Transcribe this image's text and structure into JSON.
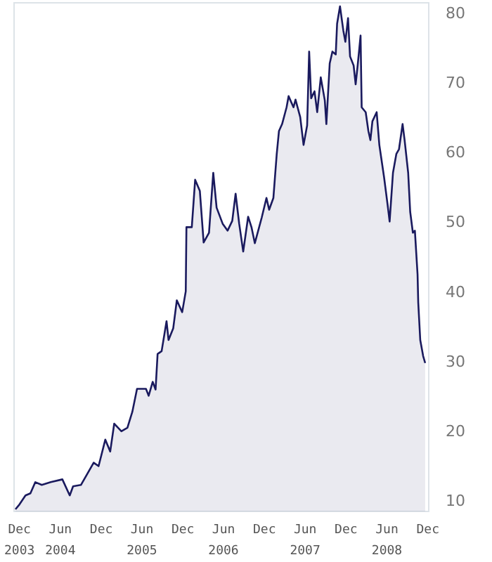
{
  "chart_data": {
    "type": "area",
    "x": [
      "2003-11-13",
      "2003-12-01",
      "2003-12-28",
      "2004-01-19",
      "2004-02-10",
      "2004-03-10",
      "2004-04-19",
      "2004-06-10",
      "2004-07-13",
      "2004-07-28",
      "2004-09-01",
      "2004-09-28",
      "2004-10-28",
      "2004-11-19",
      "2004-12-19",
      "2005-01-10",
      "2005-01-28",
      "2005-03-01",
      "2005-03-28",
      "2005-04-19",
      "2005-05-10",
      "2005-06-19",
      "2005-07-01",
      "2005-07-19",
      "2005-08-01",
      "2005-08-10",
      "2005-08-28",
      "2005-09-19",
      "2005-09-28",
      "2005-10-19",
      "2005-11-04",
      "2005-11-28",
      "2005-12-14",
      "2005-12-17",
      "2006-01-10",
      "2006-01-25",
      "2006-02-15",
      "2006-03-04",
      "2006-03-28",
      "2006-04-16",
      "2006-05-01",
      "2006-05-28",
      "2006-06-19",
      "2006-07-10",
      "2006-07-25",
      "2006-08-10",
      "2006-08-28",
      "2006-09-19",
      "2006-10-04",
      "2006-10-19",
      "2006-11-19",
      "2006-12-10",
      "2006-12-22",
      "2007-01-10",
      "2007-01-25",
      "2007-02-04",
      "2007-02-18",
      "2007-03-10",
      "2007-03-19",
      "2007-04-10",
      "2007-04-19",
      "2007-05-10",
      "2007-05-25",
      "2007-06-10",
      "2007-06-19",
      "2007-06-28",
      "2007-07-13",
      "2007-07-25",
      "2007-08-10",
      "2007-08-28",
      "2007-09-04",
      "2007-09-19",
      "2007-10-01",
      "2007-10-16",
      "2007-10-22",
      "2007-11-04",
      "2007-11-19",
      "2007-11-28",
      "2007-12-10",
      "2007-12-19",
      "2008-01-04",
      "2008-01-13",
      "2008-01-22",
      "2008-02-04",
      "2008-02-09",
      "2008-02-27",
      "2008-03-10",
      "2008-03-19",
      "2008-03-28",
      "2008-04-16",
      "2008-04-28",
      "2008-05-19",
      "2008-06-04",
      "2008-06-13",
      "2008-06-28",
      "2008-07-13",
      "2008-07-25",
      "2008-08-10",
      "2008-08-19",
      "2008-09-04",
      "2008-09-13",
      "2008-09-25",
      "2008-10-04",
      "2008-10-16",
      "2008-10-19",
      "2008-10-28",
      "2008-11-10",
      "2008-11-19"
    ],
    "series": [
      {
        "color": "#1a1a5e",
        "values": [
          8.8,
          9.5,
          10.8,
          11.1,
          12.7,
          12.3,
          12.7,
          13.1,
          10.8,
          12.1,
          12.3,
          13.8,
          15.5,
          15.0,
          18.8,
          17.1,
          21.1,
          20.0,
          20.5,
          22.8,
          26.1,
          26.1,
          25.1,
          27.1,
          26.0,
          31.1,
          31.5,
          35.8,
          33.1,
          34.8,
          38.8,
          37.1,
          40.1,
          49.3,
          49.3,
          56.1,
          54.5,
          47.1,
          48.5,
          57.1,
          52.1,
          49.8,
          48.8,
          50.2,
          54.1,
          49.8,
          45.8,
          50.8,
          49.3,
          47.0,
          50.7,
          53.5,
          51.8,
          53.5,
          59.8,
          63.1,
          64.1,
          66.5,
          68.1,
          66.5,
          67.6,
          65.1,
          61.1,
          63.9,
          74.5,
          67.8,
          68.8,
          65.8,
          70.8,
          67.5,
          64.1,
          72.8,
          74.5,
          74.1,
          78.5,
          81.0,
          77.5,
          75.9,
          79.3,
          73.8,
          72.5,
          69.8,
          72.5,
          76.8,
          66.5,
          65.8,
          63.1,
          61.8,
          64.5,
          65.8,
          61.1,
          56.5,
          52.5,
          50.1,
          57.1,
          59.8,
          60.5,
          64.1,
          61.8,
          57.1,
          51.5,
          48.5,
          48.8,
          42.5,
          38.5,
          33.1,
          30.8,
          29.8
        ]
      }
    ],
    "xlim": [
      "2003-11-07",
      "2008-12-05"
    ],
    "xticks": [
      {
        "value": "2003-12-01",
        "label": "Dec\n2003"
      },
      {
        "value": "2004-06-01",
        "label": "Jun\n2004"
      },
      {
        "value": "2004-12-01",
        "label": "Dec"
      },
      {
        "value": "2005-06-01",
        "label": "Jun\n2005"
      },
      {
        "value": "2005-12-01",
        "label": "Dec"
      },
      {
        "value": "2006-06-01",
        "label": "Jun\n2006"
      },
      {
        "value": "2006-12-01",
        "label": "Dec"
      },
      {
        "value": "2007-06-01",
        "label": "Jun\n2007"
      },
      {
        "value": "2007-12-01",
        "label": "Dec"
      },
      {
        "value": "2008-06-01",
        "label": "Jun\n2008"
      },
      {
        "value": "2008-12-01",
        "label": "Dec"
      }
    ],
    "ylim": [
      8.5,
      81.5
    ],
    "yticks": [
      10,
      20,
      30,
      40,
      50,
      60,
      70,
      80
    ]
  }
}
